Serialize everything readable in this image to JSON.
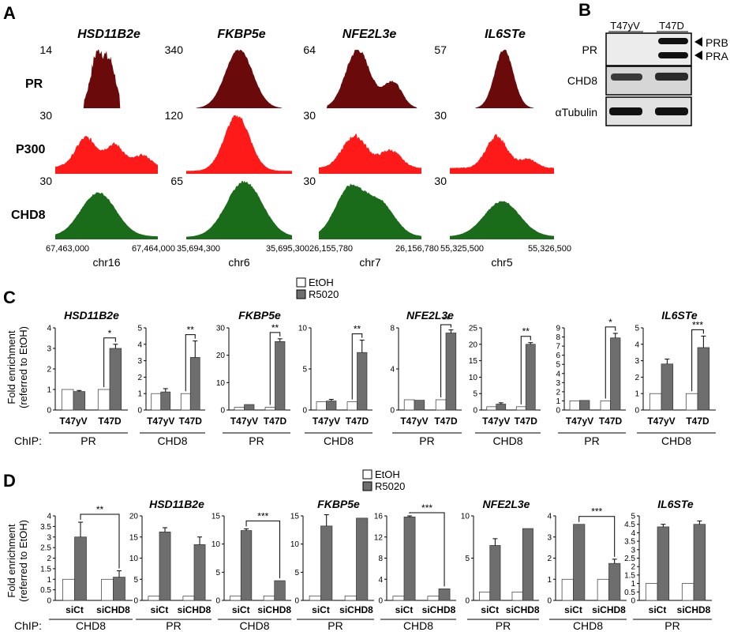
{
  "panels": {
    "A": "A",
    "B": "B",
    "C": "C",
    "D": "D"
  },
  "colors": {
    "PR_track": "#6b0a0a",
    "P300_track": "#ff1a1a",
    "CHD8_track": "#1a6b1a",
    "EtOH": "#ffffff",
    "R5020": "#6e6e6e"
  },
  "panelA": {
    "enhancers": [
      "HSD11B2e",
      "FKBP5e",
      "NFE2L3e",
      "IL6STe"
    ],
    "tracks": [
      "PR",
      "P300",
      "CHD8"
    ],
    "scales": [
      [
        "14",
        "340",
        "64",
        "57"
      ],
      [
        "30",
        "120",
        "30",
        "30"
      ],
      [
        "30",
        "65",
        "30",
        "30"
      ]
    ],
    "coords": [
      {
        "start": "67,463,000",
        "end": "67,464,000",
        "chr": "chr16"
      },
      {
        "start": "35,694,300",
        "end": "35,695,300",
        "chr": "chr6"
      },
      {
        "start": "26,155,780",
        "end": "26,156,780",
        "chr": "chr7"
      },
      {
        "start": "55,325,500",
        "end": "55,326,500",
        "chr": "chr5"
      }
    ]
  },
  "panelB": {
    "lanes": [
      "T47yV",
      "T47D"
    ],
    "rows": [
      "PR",
      "CHD8",
      "αTubulin"
    ],
    "arrows": [
      "PRB",
      "PRA"
    ]
  },
  "legend": {
    "etoh": "EtOH",
    "r5020": "R5020"
  },
  "panelC": {
    "ylabel_1": "Fold enrichment",
    "ylabel_2": "(referred to EtOH)",
    "chip_label": "ChIP:"
  },
  "panelD": {
    "ylabel_1": "Fold enrichment",
    "ylabel_2": "(referred to EtOH)",
    "chip_label": "ChIP:"
  },
  "chart_data": [
    {
      "panel": "C",
      "type": "bar",
      "title": "HSD11B2e",
      "xlabel": "PR",
      "categories": [
        "T47yV",
        "T47D"
      ],
      "ylim": [
        0,
        4
      ],
      "ticks": [
        0,
        1,
        2,
        3,
        4
      ],
      "series": [
        {
          "name": "EtOH",
          "values": [
            1.0,
            1.0
          ]
        },
        {
          "name": "R5020",
          "values": [
            0.9,
            3.0
          ]
        }
      ],
      "errors": [
        [
          0,
          0
        ],
        [
          0.05,
          0.2
        ]
      ],
      "sig": [
        {
          "label": "*",
          "category": 1
        }
      ]
    },
    {
      "panel": "C",
      "type": "bar",
      "title": "",
      "xlabel": "CHD8",
      "categories": [
        "T47yV",
        "T47D"
      ],
      "ylim": [
        0,
        5
      ],
      "ticks": [
        0,
        1,
        2,
        3,
        4,
        5
      ],
      "series": [
        {
          "name": "EtOH",
          "values": [
            1.0,
            1.0
          ]
        },
        {
          "name": "R5020",
          "values": [
            1.1,
            3.2
          ]
        }
      ],
      "errors": [
        [
          0,
          0
        ],
        [
          0.2,
          1.0
        ]
      ],
      "sig": [
        {
          "label": "**",
          "category": 1
        }
      ]
    },
    {
      "panel": "C",
      "type": "bar",
      "title": "FKBP5e",
      "xlabel": "PR",
      "categories": [
        "T47yV",
        "T47D"
      ],
      "ylim": [
        0,
        30
      ],
      "ticks": [
        0,
        10,
        20,
        30
      ],
      "series": [
        {
          "name": "EtOH",
          "values": [
            1.0,
            1.0
          ]
        },
        {
          "name": "R5020",
          "values": [
            2.0,
            25.0
          ]
        }
      ],
      "errors": [
        [
          0,
          0
        ],
        [
          0,
          1.0
        ]
      ],
      "sig": [
        {
          "label": "**",
          "category": 1
        }
      ]
    },
    {
      "panel": "C",
      "type": "bar",
      "title": "",
      "xlabel": "CHD8",
      "categories": [
        "T47yV",
        "T47D"
      ],
      "ylim": [
        0,
        10
      ],
      "ticks": [
        0,
        5,
        10
      ],
      "series": [
        {
          "name": "EtOH",
          "values": [
            1.0,
            1.0
          ]
        },
        {
          "name": "R5020",
          "values": [
            1.1,
            7.0
          ]
        }
      ],
      "errors": [
        [
          0,
          0
        ],
        [
          0.2,
          1.5
        ]
      ],
      "sig": [
        {
          "label": "**",
          "category": 1
        }
      ]
    },
    {
      "panel": "C",
      "type": "bar",
      "title": "NFE2L3e",
      "xlabel": "PR",
      "categories": [
        "T47yV",
        "T47D"
      ],
      "ylim": [
        0,
        8
      ],
      "ticks": [
        0,
        4,
        8
      ],
      "series": [
        {
          "name": "EtOH",
          "values": [
            1.0,
            1.0
          ]
        },
        {
          "name": "R5020",
          "values": [
            0.95,
            7.5
          ]
        }
      ],
      "errors": [
        [
          0,
          0
        ],
        [
          0,
          0.3
        ]
      ],
      "sig": [
        {
          "label": "**",
          "category": 1
        }
      ]
    },
    {
      "panel": "C",
      "type": "bar",
      "title": "",
      "xlabel": "CHD8",
      "categories": [
        "T47yV",
        "T47D"
      ],
      "ylim": [
        0,
        25
      ],
      "ticks": [
        0,
        5,
        10,
        15,
        20,
        25
      ],
      "series": [
        {
          "name": "EtOH",
          "values": [
            1.0,
            1.0
          ]
        },
        {
          "name": "R5020",
          "values": [
            1.8,
            20.0
          ]
        }
      ],
      "errors": [
        [
          0,
          0
        ],
        [
          0.4,
          0.5
        ]
      ],
      "sig": [
        {
          "label": "**",
          "category": 1
        }
      ]
    },
    {
      "panel": "C",
      "type": "bar",
      "title": "",
      "xlabel": "PR",
      "categories": [
        "T47yV",
        "T47D"
      ],
      "ylim": [
        0,
        9
      ],
      "ticks": [
        0,
        1,
        2,
        3,
        4,
        5,
        6,
        7,
        8,
        9
      ],
      "series": [
        {
          "name": "EtOH",
          "values": [
            1.0,
            1.0
          ]
        },
        {
          "name": "R5020",
          "values": [
            1.05,
            7.9
          ]
        }
      ],
      "errors": [
        [
          0,
          0
        ],
        [
          0,
          0.5
        ]
      ],
      "sig": [
        {
          "label": "*",
          "category": 1
        }
      ]
    },
    {
      "panel": "C",
      "type": "bar",
      "title": "IL6STe",
      "xlabel": "CHD8",
      "categories": [
        "T47yV",
        "T47D"
      ],
      "ylim": [
        0,
        5
      ],
      "ticks": [
        0,
        1,
        2,
        3,
        4,
        5
      ],
      "series": [
        {
          "name": "EtOH",
          "values": [
            1.0,
            1.0
          ]
        },
        {
          "name": "R5020",
          "values": [
            2.8,
            3.8
          ]
        }
      ],
      "errors": [
        [
          0,
          0
        ],
        [
          0.3,
          0.7
        ]
      ],
      "sig": [
        {
          "label": "***",
          "category": 1
        }
      ]
    },
    {
      "panel": "D",
      "type": "bar",
      "title": "",
      "xlabel": "CHD8",
      "categories": [
        "siCt",
        "siCHD8"
      ],
      "ylim": [
        0,
        4
      ],
      "ticks": [
        0,
        0.5,
        1,
        1.5,
        2,
        2.5,
        3,
        3.5,
        4
      ],
      "series": [
        {
          "name": "EtOH",
          "values": [
            1.0,
            1.0
          ]
        },
        {
          "name": "R5020",
          "values": [
            3.0,
            1.1
          ]
        }
      ],
      "errors": [
        [
          0,
          0
        ],
        [
          0.7,
          0.3
        ]
      ],
      "sig": [
        {
          "label": "**",
          "category": -1
        }
      ]
    },
    {
      "panel": "D",
      "type": "bar",
      "title": "HSD11B2e",
      "xlabel": "PR",
      "categories": [
        "siCt",
        "siCHD8"
      ],
      "ylim": [
        0,
        20
      ],
      "ticks": [
        0,
        5,
        10,
        15,
        20
      ],
      "series": [
        {
          "name": "EtOH",
          "values": [
            1.0,
            1.0
          ]
        },
        {
          "name": "R5020",
          "values": [
            16.2,
            13.2
          ]
        }
      ],
      "errors": [
        [
          0,
          0
        ],
        [
          1.0,
          1.8
        ]
      ],
      "sig": []
    },
    {
      "panel": "D",
      "type": "bar",
      "title": "",
      "xlabel": "CHD8",
      "categories": [
        "siCt",
        "siCHD8"
      ],
      "ylim": [
        0,
        15
      ],
      "ticks": [
        0,
        5,
        10,
        15
      ],
      "series": [
        {
          "name": "EtOH",
          "values": [
            0.8,
            0.8
          ]
        },
        {
          "name": "R5020",
          "values": [
            12.4,
            3.5
          ]
        }
      ],
      "errors": [
        [
          0,
          0
        ],
        [
          0.3,
          0
        ]
      ],
      "sig": [
        {
          "label": "***",
          "category": -1
        }
      ]
    },
    {
      "panel": "D",
      "type": "bar",
      "title": "FKBP5e",
      "xlabel": "PR",
      "categories": [
        "siCt",
        "siCHD8"
      ],
      "ylim": [
        0,
        15
      ],
      "ticks": [
        0,
        5,
        10,
        15
      ],
      "series": [
        {
          "name": "EtOH",
          "values": [
            0.8,
            0.8
          ]
        },
        {
          "name": "R5020",
          "values": [
            13.2,
            14.6
          ]
        }
      ],
      "errors": [
        [
          0,
          0
        ],
        [
          2.0,
          0
        ]
      ],
      "sig": []
    },
    {
      "panel": "D",
      "type": "bar",
      "title": "",
      "xlabel": "CHD8",
      "categories": [
        "siCt",
        "siCHD8"
      ],
      "ylim": [
        0,
        16
      ],
      "ticks": [
        0,
        4,
        8,
        12,
        16
      ],
      "series": [
        {
          "name": "EtOH",
          "values": [
            0.8,
            0.8
          ]
        },
        {
          "name": "R5020",
          "values": [
            15.8,
            2.2
          ]
        }
      ],
      "errors": [
        [
          0,
          0
        ],
        [
          0.2,
          0
        ]
      ],
      "sig": [
        {
          "label": "***",
          "category": -1
        }
      ]
    },
    {
      "panel": "D",
      "type": "bar",
      "title": "NFE2L3e",
      "xlabel": "PR",
      "categories": [
        "siCt",
        "siCHD8"
      ],
      "ylim": [
        0,
        10
      ],
      "ticks": [
        0,
        5,
        10
      ],
      "series": [
        {
          "name": "EtOH",
          "values": [
            1.0,
            1.0
          ]
        },
        {
          "name": "R5020",
          "values": [
            6.5,
            8.5
          ]
        }
      ],
      "errors": [
        [
          0,
          0
        ],
        [
          0.8,
          0
        ]
      ],
      "sig": []
    },
    {
      "panel": "D",
      "type": "bar",
      "title": "",
      "xlabel": "CHD8",
      "categories": [
        "siCt",
        "siCHD8"
      ],
      "ylim": [
        0,
        4
      ],
      "ticks": [
        0,
        1,
        2,
        3,
        4
      ],
      "series": [
        {
          "name": "EtOH",
          "values": [
            1.0,
            1.0
          ]
        },
        {
          "name": "R5020",
          "values": [
            3.6,
            1.75
          ]
        }
      ],
      "errors": [
        [
          0,
          0
        ],
        [
          0,
          0.2
        ]
      ],
      "sig": [
        {
          "label": "***",
          "category": -1
        }
      ]
    },
    {
      "panel": "D",
      "type": "bar",
      "title": "IL6STe",
      "xlabel": "PR",
      "categories": [
        "siCt",
        "siCHD8"
      ],
      "ylim": [
        0,
        5
      ],
      "ticks": [
        0,
        0.5,
        1,
        1.5,
        2,
        2.5,
        3,
        3.5,
        4,
        4.5,
        5
      ],
      "series": [
        {
          "name": "EtOH",
          "values": [
            1.0,
            1.0
          ]
        },
        {
          "name": "R5020",
          "values": [
            4.35,
            4.5
          ]
        }
      ],
      "errors": [
        [
          0,
          0
        ],
        [
          0.15,
          0.2
        ]
      ],
      "sig": []
    }
  ]
}
